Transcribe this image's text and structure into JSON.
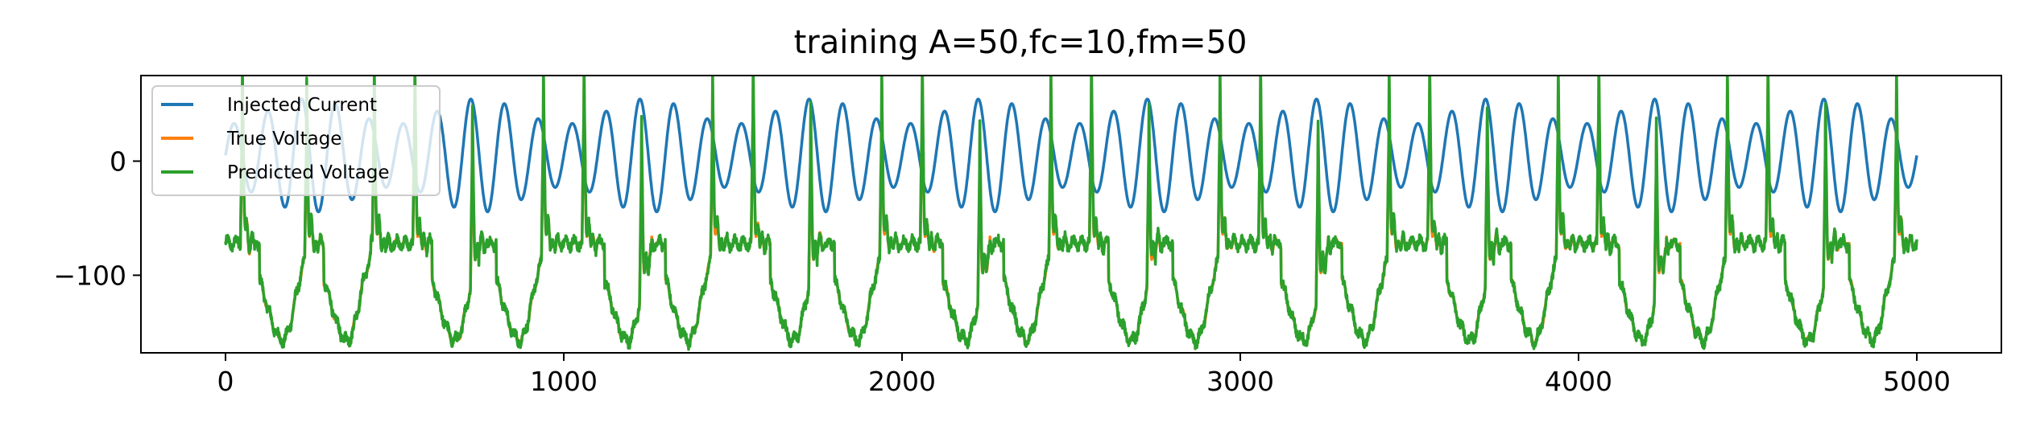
{
  "chart_data": {
    "type": "line",
    "title": "training A=50,fc=10,fm=50",
    "xlabel": "",
    "ylabel": "",
    "xlim": [
      -250,
      5250
    ],
    "ylim": [
      -168,
      75
    ],
    "xticks": [
      0,
      1000,
      2000,
      3000,
      4000,
      5000
    ],
    "xtick_labels": [
      "0",
      "1000",
      "2000",
      "3000",
      "4000",
      "5000"
    ],
    "yticks": [
      0,
      -100
    ],
    "ytick_labels": [
      "0",
      "−100"
    ],
    "grid": false,
    "legend_position": "top-left",
    "series": [
      {
        "name": "Injected Current",
        "color": "#1f77b4",
        "generator": "am",
        "samples": 5001,
        "x_range": [
          0,
          5000
        ],
        "params": {
          "A": 50,
          "offset": 5,
          "carrier_period": 100,
          "envelope_period": 500
        }
      },
      {
        "name": "True Voltage",
        "color": "#ff7f0e",
        "generator": "spikes",
        "samples": 5001,
        "x_range": [
          0,
          5000
        ],
        "params": {
          "baseline": -72,
          "spike_peak": 48,
          "trough": -157,
          "noise": 0
        }
      },
      {
        "name": "Predicted Voltage",
        "color": "#2ca02c",
        "generator": "spikes",
        "samples": 5001,
        "x_range": [
          0,
          5000
        ],
        "params": {
          "baseline": -72,
          "spike_peak": 62,
          "trough": -157,
          "noise": 4
        }
      }
    ],
    "spike_times": [
      50,
      240,
      440,
      560,
      730,
      940,
      1060,
      1230,
      1440,
      1560,
      1730,
      1940,
      2060,
      2230,
      2440,
      2560,
      2730,
      2940,
      3060,
      3230,
      3440,
      3560,
      3730,
      3940,
      4060,
      4230,
      4440,
      4560,
      4730,
      4940
    ],
    "trough_times": [
      170,
      360,
      680,
      870,
      1190,
      1370,
      1680,
      1870,
      2190,
      2370,
      2680,
      2870,
      3190,
      3370,
      3680,
      3870,
      4190,
      4370,
      4680,
      4870
    ]
  }
}
